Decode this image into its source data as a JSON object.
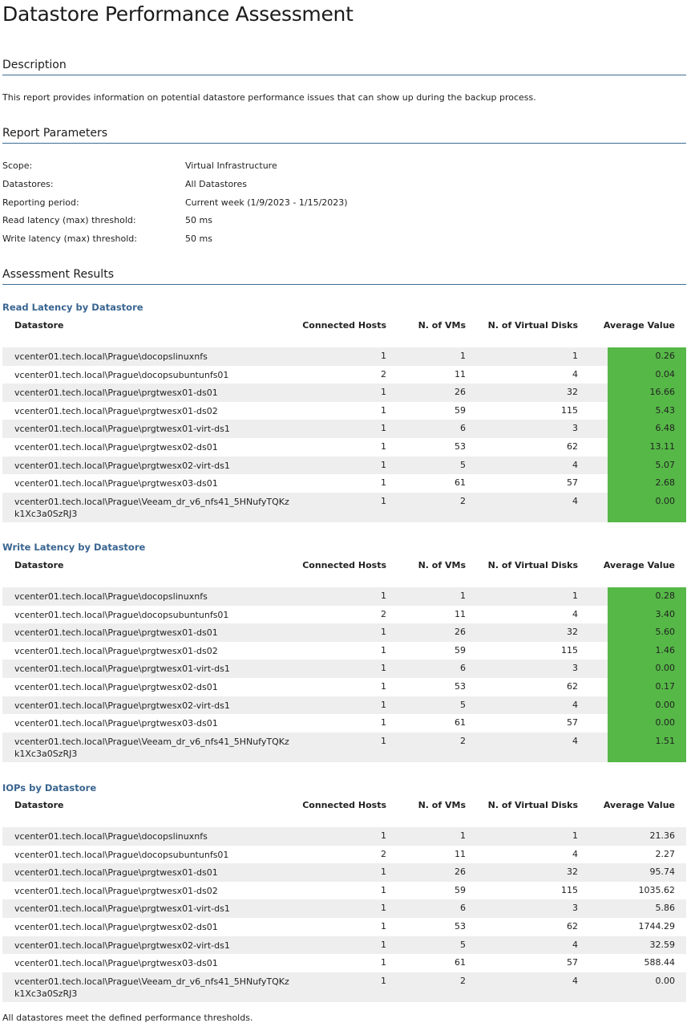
{
  "title": "Datastore Performance Assessment",
  "description": {
    "heading": "Description",
    "text": "This report provides information on potential datastore performance issues that can show up during the backup process."
  },
  "parameters": {
    "heading": "Report Parameters",
    "items": [
      {
        "label": "Scope:",
        "value": "Virtual Infrastructure"
      },
      {
        "label": "Datastores:",
        "value": "All Datastores"
      },
      {
        "label": "Reporting period:",
        "value": "Current week (1/9/2023 - 1/15/2023)"
      },
      {
        "label": "Read latency (max) threshold:",
        "value": "50 ms"
      },
      {
        "label": "Write latency (max) threshold:",
        "value": "50 ms"
      }
    ]
  },
  "results": {
    "heading": "Assessment Results",
    "columns": {
      "datastore": "Datastore",
      "hosts": "Connected Hosts",
      "vms": "N. of VMs",
      "disks": "N. of Virtual Disks",
      "avg": "Average Value"
    },
    "highlight_color": "#56b847",
    "tables": [
      {
        "title": "Read Latency by Datastore",
        "highlight": true,
        "rows": [
          {
            "ds": "vcenter01.tech.local\\Prague\\docopslinuxnfs",
            "hosts": "1",
            "vms": "1",
            "disks": "1",
            "avg": "0.26"
          },
          {
            "ds": "vcenter01.tech.local\\Prague\\docopsubuntunfs01",
            "hosts": "2",
            "vms": "11",
            "disks": "4",
            "avg": "0.04"
          },
          {
            "ds": "vcenter01.tech.local\\Prague\\prgtwesx01-ds01",
            "hosts": "1",
            "vms": "26",
            "disks": "32",
            "avg": "16.66"
          },
          {
            "ds": "vcenter01.tech.local\\Prague\\prgtwesx01-ds02",
            "hosts": "1",
            "vms": "59",
            "disks": "115",
            "avg": "5.43"
          },
          {
            "ds": "vcenter01.tech.local\\Prague\\prgtwesx01-virt-ds1",
            "hosts": "1",
            "vms": "6",
            "disks": "3",
            "avg": "6.48"
          },
          {
            "ds": "vcenter01.tech.local\\Prague\\prgtwesx02-ds01",
            "hosts": "1",
            "vms": "53",
            "disks": "62",
            "avg": "13.11"
          },
          {
            "ds": "vcenter01.tech.local\\Prague\\prgtwesx02-virt-ds1",
            "hosts": "1",
            "vms": "5",
            "disks": "4",
            "avg": "5.07"
          },
          {
            "ds": "vcenter01.tech.local\\Prague\\prgtwesx03-ds01",
            "hosts": "1",
            "vms": "61",
            "disks": "57",
            "avg": "2.68"
          },
          {
            "ds": "vcenter01.tech.local\\Prague\\Veeam_dr_v6_nfs41_5HNufyTQKz",
            "ds2": "k1Xc3a0SzRJ3",
            "hosts": "1",
            "vms": "2",
            "disks": "4",
            "avg": "0.00"
          }
        ]
      },
      {
        "title": "Write Latency by Datastore",
        "highlight": true,
        "rows": [
          {
            "ds": "vcenter01.tech.local\\Prague\\docopslinuxnfs",
            "hosts": "1",
            "vms": "1",
            "disks": "1",
            "avg": "0.28"
          },
          {
            "ds": "vcenter01.tech.local\\Prague\\docopsubuntunfs01",
            "hosts": "2",
            "vms": "11",
            "disks": "4",
            "avg": "3.40"
          },
          {
            "ds": "vcenter01.tech.local\\Prague\\prgtwesx01-ds01",
            "hosts": "1",
            "vms": "26",
            "disks": "32",
            "avg": "5.60"
          },
          {
            "ds": "vcenter01.tech.local\\Prague\\prgtwesx01-ds02",
            "hosts": "1",
            "vms": "59",
            "disks": "115",
            "avg": "1.46"
          },
          {
            "ds": "vcenter01.tech.local\\Prague\\prgtwesx01-virt-ds1",
            "hosts": "1",
            "vms": "6",
            "disks": "3",
            "avg": "0.00"
          },
          {
            "ds": "vcenter01.tech.local\\Prague\\prgtwesx02-ds01",
            "hosts": "1",
            "vms": "53",
            "disks": "62",
            "avg": "0.17"
          },
          {
            "ds": "vcenter01.tech.local\\Prague\\prgtwesx02-virt-ds1",
            "hosts": "1",
            "vms": "5",
            "disks": "4",
            "avg": "0.00"
          },
          {
            "ds": "vcenter01.tech.local\\Prague\\prgtwesx03-ds01",
            "hosts": "1",
            "vms": "61",
            "disks": "57",
            "avg": "0.00"
          },
          {
            "ds": "vcenter01.tech.local\\Prague\\Veeam_dr_v6_nfs41_5HNufyTQKz",
            "ds2": "k1Xc3a0SzRJ3",
            "hosts": "1",
            "vms": "2",
            "disks": "4",
            "avg": "1.51"
          }
        ]
      },
      {
        "title": "IOPs by Datastore",
        "highlight": false,
        "rows": [
          {
            "ds": "vcenter01.tech.local\\Prague\\docopslinuxnfs",
            "hosts": "1",
            "vms": "1",
            "disks": "1",
            "avg": "21.36"
          },
          {
            "ds": "vcenter01.tech.local\\Prague\\docopsubuntunfs01",
            "hosts": "2",
            "vms": "11",
            "disks": "4",
            "avg": "2.27"
          },
          {
            "ds": "vcenter01.tech.local\\Prague\\prgtwesx01-ds01",
            "hosts": "1",
            "vms": "26",
            "disks": "32",
            "avg": "95.74"
          },
          {
            "ds": "vcenter01.tech.local\\Prague\\prgtwesx01-ds02",
            "hosts": "1",
            "vms": "59",
            "disks": "115",
            "avg": "1035.62"
          },
          {
            "ds": "vcenter01.tech.local\\Prague\\prgtwesx01-virt-ds1",
            "hosts": "1",
            "vms": "6",
            "disks": "3",
            "avg": "5.86"
          },
          {
            "ds": "vcenter01.tech.local\\Prague\\prgtwesx02-ds01",
            "hosts": "1",
            "vms": "53",
            "disks": "62",
            "avg": "1744.29"
          },
          {
            "ds": "vcenter01.tech.local\\Prague\\prgtwesx02-virt-ds1",
            "hosts": "1",
            "vms": "5",
            "disks": "4",
            "avg": "32.59"
          },
          {
            "ds": "vcenter01.tech.local\\Prague\\prgtwesx03-ds01",
            "hosts": "1",
            "vms": "61",
            "disks": "57",
            "avg": "588.44"
          },
          {
            "ds": "vcenter01.tech.local\\Prague\\Veeam_dr_v6_nfs41_5HNufyTQKz",
            "ds2": "k1Xc3a0SzRJ3",
            "hosts": "1",
            "vms": "2",
            "disks": "4",
            "avg": "0.00"
          }
        ]
      }
    ]
  },
  "footer": "All datastores meet the defined performance thresholds."
}
